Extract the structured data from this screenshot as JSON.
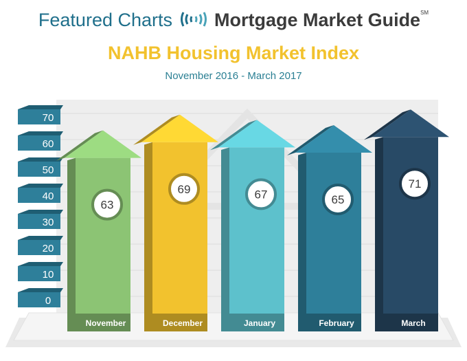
{
  "header": {
    "prefix": "Featured Charts",
    "brand": "Mortgage Market Guide",
    "trademark": "SM"
  },
  "chart_data": {
    "type": "bar",
    "title": "NAHB Housing Market Index",
    "subtitle": "November 2016 - March 2017",
    "categories": [
      "November",
      "December",
      "January",
      "February",
      "March"
    ],
    "values": [
      63,
      69,
      67,
      65,
      71
    ],
    "yticks": [
      70,
      60,
      50,
      40,
      30,
      20,
      10,
      0
    ],
    "colors": [
      "#8cc474",
      "#f2c22e",
      "#5dc1cc",
      "#2e7f9a",
      "#284a66"
    ],
    "xlabel": "",
    "ylabel": ""
  }
}
